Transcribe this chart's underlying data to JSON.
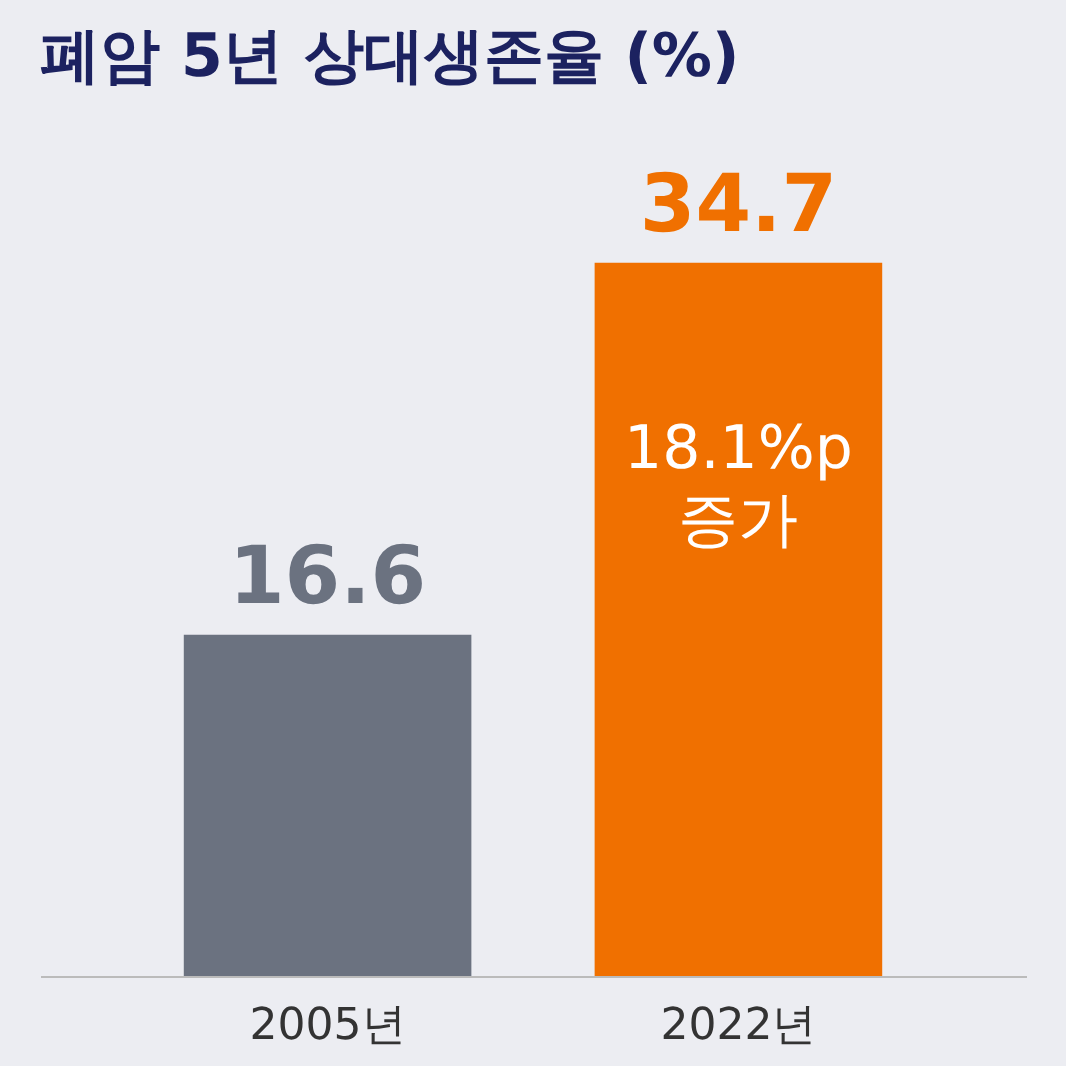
{
  "chart_data": {
    "type": "bar",
    "title": "폐암 5년 상대생존율 (%)",
    "categories": [
      "2005년",
      "2022년"
    ],
    "values": [
      16.6,
      34.7
    ],
    "colors": [
      "#6b7280",
      "#f07000"
    ],
    "data_labels": true,
    "annotations": [
      "18.1%p 증가"
    ]
  }
}
